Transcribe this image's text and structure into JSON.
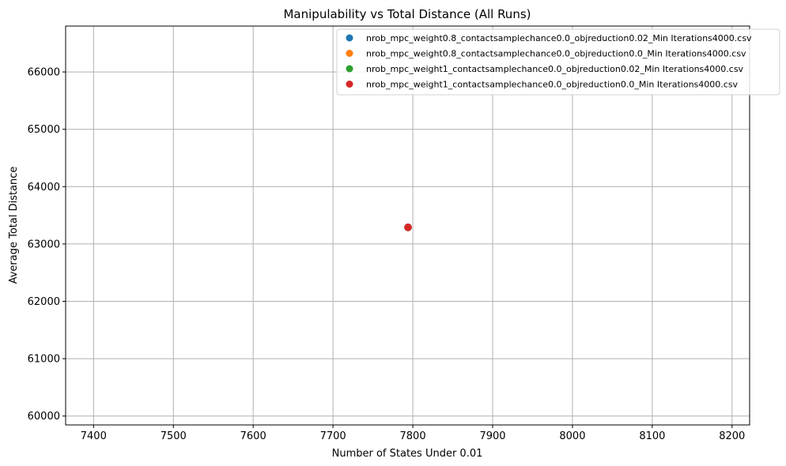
{
  "chart_data": {
    "type": "scatter",
    "title": "Manipulability vs Total Distance (All Runs)",
    "xlabel": "Number of States Under 0.01",
    "ylabel": "Average Total Distance",
    "xlim": [
      7365,
      8222
    ],
    "ylim": [
      59845,
      66800
    ],
    "xticks": [
      7400,
      7500,
      7600,
      7700,
      7800,
      7900,
      8000,
      8100,
      8200
    ],
    "yticks": [
      60000,
      61000,
      62000,
      63000,
      64000,
      65000,
      66000
    ],
    "grid": true,
    "legend_position": "top-right",
    "series": [
      {
        "name": "nrob_mpc_weight0.8_contactsamplechance0.0_objreduction0.02_Min Iterations4000.csv",
        "color": "#1f77b4",
        "x": [
          7794
        ],
        "y": [
          63290
        ]
      },
      {
        "name": "nrob_mpc_weight0.8_contactsamplechance0.0_objreduction0.0_Min Iterations4000.csv",
        "color": "#ff7f0e",
        "x": [
          7794
        ],
        "y": [
          63290
        ]
      },
      {
        "name": "nrob_mpc_weight1_contactsamplechance0.0_objreduction0.02_Min Iterations4000.csv",
        "color": "#2ca02c",
        "x": [
          7794
        ],
        "y": [
          63290
        ]
      },
      {
        "name": "nrob_mpc_weight1_contactsamplechance0.0_objreduction0.0_Min Iterations4000.csv",
        "color": "#d62728",
        "x": [
          7794
        ],
        "y": [
          63290
        ]
      }
    ]
  }
}
